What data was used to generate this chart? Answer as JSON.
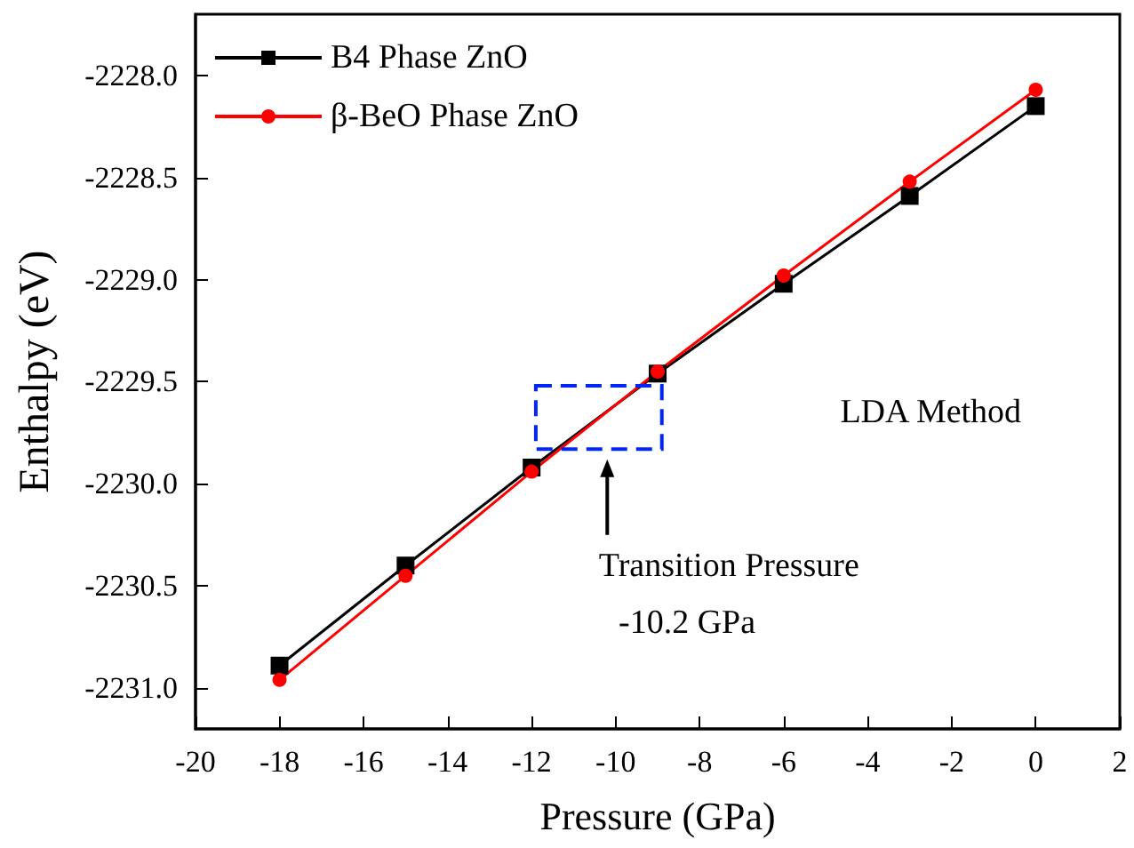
{
  "chart_data": {
    "type": "line",
    "xlabel": "Pressure (GPa)",
    "ylabel": "Enthalpy (eV)",
    "x": [
      -18,
      -15,
      -12,
      -9,
      -6,
      -3,
      0
    ],
    "series": [
      {
        "name": "B4 Phase ZnO",
        "color": "#000000",
        "marker": "square",
        "values": [
          -2230.89,
          -2230.4,
          -2229.92,
          -2229.46,
          -2229.02,
          -2228.59,
          -2228.15
        ]
      },
      {
        "name": "β-BeO Phase ZnO",
        "color": "#ff0000",
        "marker": "circle",
        "values": [
          -2230.96,
          -2230.45,
          -2229.94,
          -2229.45,
          -2228.98,
          -2228.52,
          -2228.07
        ]
      }
    ],
    "xlim": [
      -20,
      2
    ],
    "xticks": [
      -20,
      -18,
      -16,
      -14,
      -12,
      -10,
      -8,
      -6,
      -4,
      -2,
      0,
      2
    ],
    "ylim": [
      -2231.2,
      -2227.7
    ],
    "yticks": [
      {
        "value": -2231,
        "label": "-2231.0"
      },
      {
        "value": -2230.5,
        "label": "-2230.5"
      },
      {
        "value": -2230,
        "label": "-2230.0"
      },
      {
        "value": -2229.5,
        "label": "-2229.5"
      },
      {
        "value": -2229,
        "label": "-2229.0"
      },
      {
        "value": -2228.5,
        "label": "-2228.5"
      },
      {
        "value": -2228,
        "label": "-2228.0"
      }
    ],
    "annotations": [
      "LDA Method",
      "Transition Pressure",
      "-10.2 GPa"
    ],
    "grid": false,
    "legend": "top left",
    "line_style": "solid"
  }
}
